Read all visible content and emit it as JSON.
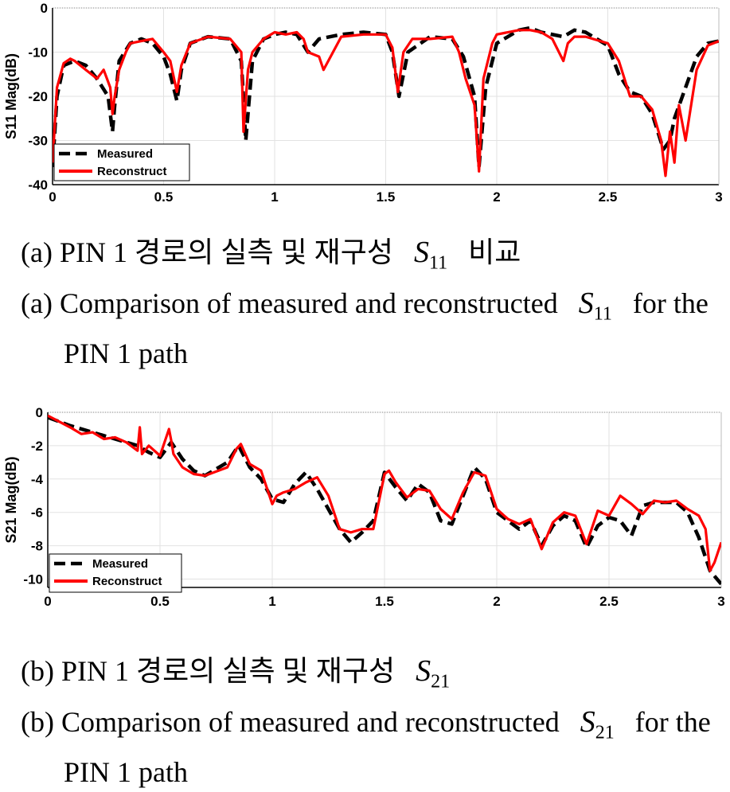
{
  "chart_data": [
    {
      "type": "line",
      "ylabel": "S11 Mag(dB)",
      "xlim": [
        0,
        3
      ],
      "ylim": [
        -40,
        0
      ],
      "x_ticks": [
        "0",
        "0.5",
        "1",
        "1.5",
        "2",
        "2.5",
        "3"
      ],
      "y_ticks": [
        "0",
        "-10",
        "-20",
        "-30",
        "-40"
      ],
      "grid": true,
      "legend_position": "bottom-left",
      "series": [
        {
          "name": "Measured",
          "color": "#000000",
          "style": "dashed",
          "x": [
            0,
            0.02,
            0.05,
            0.1,
            0.15,
            0.2,
            0.25,
            0.27,
            0.28,
            0.3,
            0.35,
            0.4,
            0.45,
            0.5,
            0.53,
            0.56,
            0.58,
            0.62,
            0.7,
            0.8,
            0.85,
            0.87,
            0.9,
            0.95,
            1.0,
            1.05,
            1.1,
            1.15,
            1.2,
            1.3,
            1.4,
            1.5,
            1.53,
            1.56,
            1.6,
            1.7,
            1.8,
            1.85,
            1.9,
            1.92,
            1.95,
            2.0,
            2.1,
            2.15,
            2.2,
            2.3,
            2.35,
            2.4,
            2.5,
            2.55,
            2.6,
            2.65,
            2.7,
            2.75,
            2.78,
            2.8,
            2.85,
            2.9,
            2.95,
            3.0
          ],
          "y": [
            -36,
            -20,
            -13,
            -12,
            -13,
            -16,
            -20,
            -28,
            -22,
            -12,
            -8,
            -7,
            -8,
            -11,
            -15,
            -21,
            -14,
            -8,
            -6.5,
            -7,
            -12,
            -30,
            -12,
            -7,
            -6,
            -5.5,
            -6,
            -10,
            -7,
            -6,
            -5.5,
            -6,
            -10,
            -20,
            -10,
            -6.5,
            -7,
            -11,
            -20,
            -36,
            -18,
            -8,
            -5,
            -4.5,
            -5.5,
            -6.5,
            -5,
            -5.5,
            -8.5,
            -15,
            -19,
            -20,
            -24,
            -32,
            -30,
            -25,
            -18,
            -11,
            -8,
            -7.5
          ]
        },
        {
          "name": "Reconstruct",
          "color": "#ff0000",
          "style": "solid",
          "x": [
            0,
            0.02,
            0.05,
            0.08,
            0.1,
            0.15,
            0.2,
            0.23,
            0.26,
            0.27,
            0.28,
            0.3,
            0.33,
            0.35,
            0.4,
            0.45,
            0.5,
            0.53,
            0.56,
            0.58,
            0.62,
            0.7,
            0.8,
            0.85,
            0.86,
            0.88,
            0.9,
            0.95,
            1.0,
            1.05,
            1.1,
            1.13,
            1.15,
            1.2,
            1.22,
            1.3,
            1.4,
            1.5,
            1.53,
            1.555,
            1.58,
            1.62,
            1.7,
            1.8,
            1.83,
            1.86,
            1.9,
            1.92,
            1.94,
            1.98,
            2.0,
            2.1,
            2.15,
            2.2,
            2.25,
            2.3,
            2.32,
            2.35,
            2.4,
            2.5,
            2.55,
            2.6,
            2.65,
            2.7,
            2.74,
            2.76,
            2.78,
            2.8,
            2.82,
            2.85,
            2.9,
            2.95,
            3.0
          ],
          "y": [
            -35,
            -18,
            -12.5,
            -11.5,
            -12,
            -14,
            -16,
            -14,
            -18,
            -24,
            -20,
            -14,
            -10,
            -8,
            -7.5,
            -7,
            -10,
            -12,
            -19,
            -13,
            -8,
            -6.5,
            -7,
            -10,
            -28,
            -14,
            -10,
            -7,
            -5.5,
            -6,
            -5.5,
            -7,
            -10,
            -11,
            -14,
            -6.5,
            -6,
            -6,
            -9,
            -19,
            -10,
            -7,
            -7,
            -6.5,
            -10,
            -16,
            -22,
            -37,
            -16,
            -8,
            -6,
            -5,
            -5,
            -5.5,
            -7,
            -12,
            -8,
            -6.5,
            -6.5,
            -8,
            -12,
            -20,
            -20,
            -23,
            -30,
            -38,
            -28,
            -35,
            -22,
            -30,
            -14,
            -8.5,
            -7.5
          ]
        }
      ]
    },
    {
      "type": "line",
      "ylabel": "S21 Mag(dB)",
      "xlim": [
        0,
        3
      ],
      "ylim": [
        -10.5,
        0
      ],
      "x_ticks": [
        "0",
        "0.5",
        "1",
        "1.5",
        "2",
        "2.5",
        "3"
      ],
      "y_ticks": [
        "0",
        "-2",
        "-4",
        "-6",
        "-8",
        "-10"
      ],
      "grid": true,
      "legend_position": "bottom-left",
      "series": [
        {
          "name": "Measured",
          "color": "#000000",
          "style": "dashed",
          "x": [
            0,
            0.1,
            0.2,
            0.3,
            0.4,
            0.45,
            0.5,
            0.55,
            0.6,
            0.65,
            0.7,
            0.8,
            0.85,
            0.9,
            0.95,
            1.0,
            1.05,
            1.1,
            1.15,
            1.2,
            1.3,
            1.35,
            1.4,
            1.45,
            1.5,
            1.55,
            1.6,
            1.65,
            1.7,
            1.75,
            1.8,
            1.85,
            1.9,
            1.95,
            2.0,
            2.1,
            2.15,
            2.2,
            2.25,
            2.3,
            2.35,
            2.4,
            2.45,
            2.5,
            2.55,
            2.6,
            2.65,
            2.7,
            2.8,
            2.85,
            2.9,
            2.95,
            3.0
          ],
          "y": [
            -0.3,
            -0.8,
            -1.2,
            -1.6,
            -2.0,
            -2.4,
            -2.7,
            -1.8,
            -2.8,
            -3.5,
            -3.8,
            -3.0,
            -2.0,
            -3.3,
            -4.0,
            -5.2,
            -5.4,
            -4.3,
            -3.6,
            -4.6,
            -7.0,
            -7.8,
            -7.2,
            -6.5,
            -3.6,
            -4.5,
            -5.3,
            -4.3,
            -4.8,
            -6.5,
            -6.7,
            -5.0,
            -3.3,
            -4.0,
            -6.0,
            -7.0,
            -6.5,
            -8.0,
            -6.8,
            -6.2,
            -6.5,
            -8.1,
            -6.8,
            -6.3,
            -6.5,
            -7.4,
            -5.6,
            -5.4,
            -5.4,
            -6.0,
            -7.5,
            -9.5,
            -10.3
          ]
        },
        {
          "name": "Reconstruct",
          "color": "#ff0000",
          "style": "solid",
          "x": [
            0,
            0.1,
            0.15,
            0.2,
            0.25,
            0.3,
            0.35,
            0.4,
            0.41,
            0.42,
            0.45,
            0.5,
            0.54,
            0.55,
            0.56,
            0.6,
            0.65,
            0.7,
            0.8,
            0.84,
            0.86,
            0.9,
            0.95,
            1.0,
            1.02,
            1.05,
            1.1,
            1.15,
            1.2,
            1.25,
            1.3,
            1.35,
            1.4,
            1.45,
            1.5,
            1.52,
            1.55,
            1.6,
            1.65,
            1.7,
            1.75,
            1.8,
            1.85,
            1.9,
            1.95,
            2.0,
            2.05,
            2.1,
            2.15,
            2.2,
            2.25,
            2.3,
            2.35,
            2.4,
            2.45,
            2.5,
            2.55,
            2.6,
            2.65,
            2.7,
            2.75,
            2.8,
            2.85,
            2.9,
            2.93,
            2.95,
            2.97,
            3.0
          ],
          "y": [
            -0.2,
            -0.9,
            -1.3,
            -1.2,
            -1.6,
            -1.5,
            -1.8,
            -2.3,
            -0.9,
            -2.5,
            -2.0,
            -2.6,
            -1.0,
            -1.7,
            -2.5,
            -3.3,
            -3.7,
            -3.8,
            -3.3,
            -2.2,
            -1.9,
            -3.1,
            -3.5,
            -5.5,
            -5.0,
            -4.8,
            -4.6,
            -4.2,
            -3.9,
            -5.0,
            -7.0,
            -7.2,
            -7.0,
            -7.0,
            -3.7,
            -3.5,
            -4.2,
            -5.1,
            -4.6,
            -4.7,
            -5.8,
            -6.4,
            -4.8,
            -3.6,
            -3.8,
            -5.8,
            -6.4,
            -6.7,
            -6.4,
            -8.2,
            -6.6,
            -6.0,
            -6.2,
            -7.9,
            -5.9,
            -6.2,
            -5.0,
            -5.5,
            -6.1,
            -5.3,
            -5.4,
            -5.3,
            -5.8,
            -6.2,
            -7.0,
            -9.5,
            -9.0,
            -7.8
          ]
        }
      ]
    }
  ],
  "captions": {
    "a_korean_line": {
      "prefix": "(a) PIN 1 경로의 실측 및 재구성",
      "sym": "S",
      "sub": "11",
      "suffix": "비교"
    },
    "a_english_line1": {
      "prefix": "(a) Comparison of measured and reconstructed",
      "sym": "S",
      "sub": "11",
      "suffix": "for the"
    },
    "a_english_line2": "PIN 1 path",
    "b_korean_line": {
      "prefix": "(b) PIN 1 경로의 실측 및 재구성",
      "sym": "S",
      "sub": "21"
    },
    "b_english_line1": {
      "prefix": "(b) Comparison of measured and reconstructed",
      "sym": "S",
      "sub": "21",
      "suffix": "for the"
    },
    "b_english_line2": "PIN 1 path"
  }
}
